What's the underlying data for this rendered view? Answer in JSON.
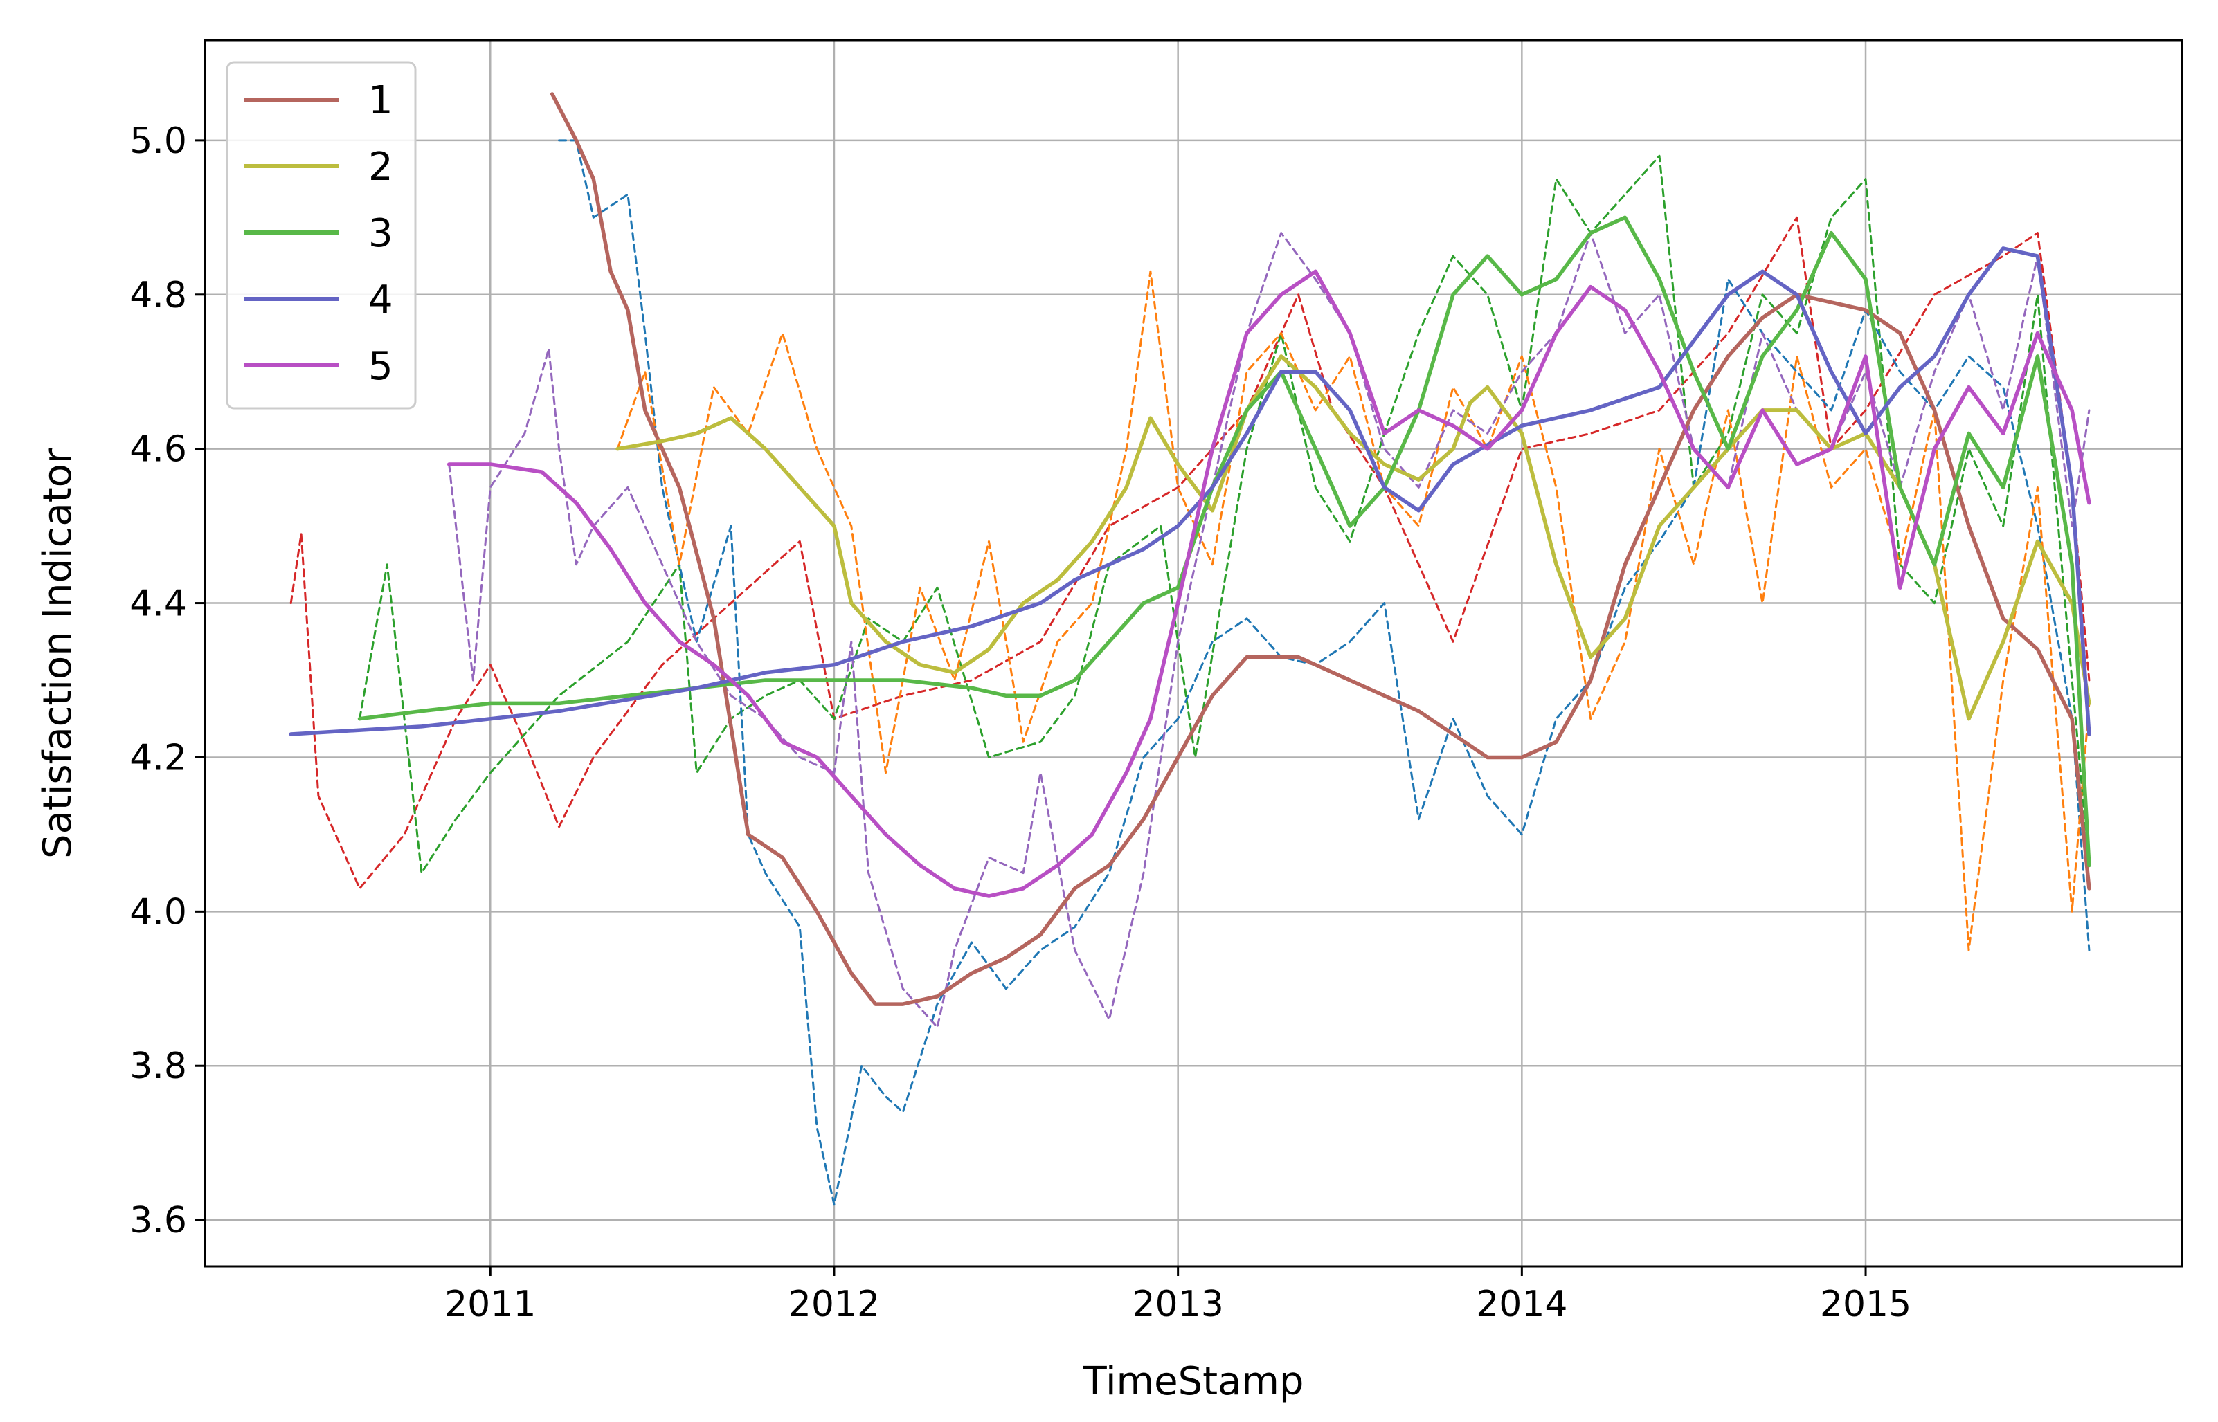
{
  "chart_data": {
    "type": "line",
    "title": "",
    "xlabel": "TimeStamp",
    "ylabel": "Satisfaction Indicator",
    "xlim": [
      2010.17,
      2015.92
    ],
    "ylim": [
      3.54,
      5.13
    ],
    "x_ticks": [
      2011,
      2012,
      2013,
      2014,
      2015
    ],
    "y_ticks": [
      3.6,
      3.8,
      4.0,
      4.2,
      4.4,
      4.6,
      4.8,
      5.0
    ],
    "x_tick_labels": [
      "2011",
      "2012",
      "2013",
      "2014",
      "2015"
    ],
    "y_tick_labels": [
      "3.6",
      "3.8",
      "4.0",
      "4.2",
      "4.4",
      "4.6",
      "4.8",
      "5.0"
    ],
    "grid": true,
    "legend_placement": "top-left",
    "series": [
      {
        "name": "1",
        "style": "solid",
        "color": "#b5655e",
        "x": [
          2011.18,
          2011.25,
          2011.3,
          2011.35,
          2011.4,
          2011.45,
          2011.55,
          2011.65,
          2011.75,
          2011.85,
          2011.95,
          2012.05,
          2012.12,
          2012.2,
          2012.3,
          2012.4,
          2012.5,
          2012.6,
          2012.7,
          2012.8,
          2012.9,
          2013.0,
          2013.1,
          2013.2,
          2013.35,
          2013.5,
          2013.6,
          2013.7,
          2013.8,
          2013.9,
          2014.0,
          2014.1,
          2014.2,
          2014.3,
          2014.4,
          2014.5,
          2014.6,
          2014.7,
          2014.8,
          2014.9,
          2015.0,
          2015.1,
          2015.2,
          2015.3,
          2015.4,
          2015.5,
          2015.6,
          2015.65
        ],
        "y": [
          5.06,
          5.0,
          4.95,
          4.83,
          4.78,
          4.65,
          4.55,
          4.38,
          4.1,
          4.07,
          4.0,
          3.92,
          3.88,
          3.88,
          3.89,
          3.92,
          3.94,
          3.97,
          4.03,
          4.06,
          4.12,
          4.2,
          4.28,
          4.33,
          4.33,
          4.3,
          4.28,
          4.26,
          4.23,
          4.2,
          4.2,
          4.22,
          4.3,
          4.45,
          4.55,
          4.65,
          4.72,
          4.77,
          4.8,
          4.79,
          4.78,
          4.75,
          4.65,
          4.5,
          4.38,
          4.34,
          4.25,
          4.03
        ]
      },
      {
        "name": "2",
        "style": "solid",
        "color": "#bcbd3e",
        "x": [
          2011.37,
          2011.5,
          2011.6,
          2011.7,
          2011.8,
          2011.9,
          2012.0,
          2012.05,
          2012.15,
          2012.25,
          2012.35,
          2012.45,
          2012.55,
          2012.65,
          2012.75,
          2012.85,
          2012.92,
          2013.0,
          2013.1,
          2013.2,
          2013.3,
          2013.4,
          2013.5,
          2013.6,
          2013.7,
          2013.8,
          2013.85,
          2013.9,
          2014.0,
          2014.1,
          2014.2,
          2014.3,
          2014.4,
          2014.5,
          2014.6,
          2014.7,
          2014.8,
          2014.9,
          2015.0,
          2015.1,
          2015.2,
          2015.3,
          2015.4,
          2015.5,
          2015.6,
          2015.65
        ],
        "y": [
          4.6,
          4.61,
          4.62,
          4.64,
          4.6,
          4.55,
          4.5,
          4.4,
          4.35,
          4.32,
          4.31,
          4.34,
          4.4,
          4.43,
          4.48,
          4.55,
          4.64,
          4.58,
          4.52,
          4.65,
          4.72,
          4.68,
          4.62,
          4.58,
          4.56,
          4.6,
          4.66,
          4.68,
          4.62,
          4.45,
          4.33,
          4.38,
          4.5,
          4.55,
          4.6,
          4.65,
          4.65,
          4.6,
          4.62,
          4.55,
          4.45,
          4.25,
          4.35,
          4.48,
          4.4,
          4.27
        ]
      },
      {
        "name": "3",
        "style": "solid",
        "color": "#58b848",
        "x": [
          2010.62,
          2010.8,
          2011.0,
          2011.2,
          2011.4,
          2011.6,
          2011.8,
          2012.0,
          2012.2,
          2012.4,
          2012.5,
          2012.6,
          2012.7,
          2012.8,
          2012.9,
          2013.0,
          2013.1,
          2013.2,
          2013.3,
          2013.4,
          2013.5,
          2013.6,
          2013.7,
          2013.8,
          2013.9,
          2014.0,
          2014.1,
          2014.2,
          2014.3,
          2014.4,
          2014.5,
          2014.6,
          2014.7,
          2014.8,
          2014.9,
          2015.0,
          2015.1,
          2015.2,
          2015.3,
          2015.4,
          2015.5,
          2015.6,
          2015.65
        ],
        "y": [
          4.25,
          4.26,
          4.27,
          4.27,
          4.28,
          4.29,
          4.3,
          4.3,
          4.3,
          4.29,
          4.28,
          4.28,
          4.3,
          4.35,
          4.4,
          4.42,
          4.55,
          4.65,
          4.7,
          4.6,
          4.5,
          4.55,
          4.65,
          4.8,
          4.85,
          4.8,
          4.82,
          4.88,
          4.9,
          4.82,
          4.7,
          4.6,
          4.72,
          4.78,
          4.88,
          4.82,
          4.55,
          4.45,
          4.62,
          4.55,
          4.72,
          4.45,
          4.06
        ]
      },
      {
        "name": "4",
        "style": "solid",
        "color": "#6464c4",
        "x": [
          2010.42,
          2010.8,
          2011.2,
          2011.6,
          2011.8,
          2012.0,
          2012.2,
          2012.4,
          2012.6,
          2012.7,
          2012.9,
          2013.0,
          2013.1,
          2013.2,
          2013.3,
          2013.4,
          2013.5,
          2013.6,
          2013.7,
          2013.8,
          2014.0,
          2014.2,
          2014.4,
          2014.6,
          2014.7,
          2014.8,
          2014.9,
          2015.0,
          2015.1,
          2015.2,
          2015.3,
          2015.4,
          2015.5,
          2015.6,
          2015.65
        ],
        "y": [
          4.23,
          4.24,
          4.26,
          4.29,
          4.31,
          4.32,
          4.35,
          4.37,
          4.4,
          4.43,
          4.47,
          4.5,
          4.55,
          4.62,
          4.7,
          4.7,
          4.65,
          4.55,
          4.52,
          4.58,
          4.63,
          4.65,
          4.68,
          4.8,
          4.83,
          4.8,
          4.7,
          4.62,
          4.68,
          4.72,
          4.8,
          4.86,
          4.85,
          4.55,
          4.23
        ]
      },
      {
        "name": "5",
        "style": "solid",
        "color": "#b84fc4",
        "x": [
          2010.88,
          2011.0,
          2011.15,
          2011.25,
          2011.35,
          2011.45,
          2011.55,
          2011.65,
          2011.75,
          2011.85,
          2011.95,
          2012.05,
          2012.15,
          2012.25,
          2012.35,
          2012.45,
          2012.55,
          2012.65,
          2012.75,
          2012.85,
          2012.92,
          2013.0,
          2013.1,
          2013.2,
          2013.3,
          2013.4,
          2013.5,
          2013.6,
          2013.7,
          2013.8,
          2013.9,
          2014.0,
          2014.1,
          2014.2,
          2014.3,
          2014.4,
          2014.5,
          2014.6,
          2014.7,
          2014.8,
          2014.9,
          2015.0,
          2015.1,
          2015.2,
          2015.3,
          2015.4,
          2015.5,
          2015.6,
          2015.65
        ],
        "y": [
          4.58,
          4.58,
          4.57,
          4.53,
          4.47,
          4.4,
          4.35,
          4.32,
          4.28,
          4.22,
          4.2,
          4.15,
          4.1,
          4.06,
          4.03,
          4.02,
          4.03,
          4.06,
          4.1,
          4.18,
          4.25,
          4.4,
          4.6,
          4.75,
          4.8,
          4.83,
          4.75,
          4.62,
          4.65,
          4.63,
          4.6,
          4.65,
          4.75,
          4.81,
          4.78,
          4.7,
          4.6,
          4.55,
          4.65,
          4.58,
          4.6,
          4.72,
          4.42,
          4.6,
          4.68,
          4.62,
          4.75,
          4.65,
          4.53
        ]
      },
      {
        "name": "",
        "style": "dashed",
        "color": "#d62728",
        "x": [
          2010.42,
          2010.45,
          2010.5,
          2010.62,
          2010.75,
          2010.9,
          2011.0,
          2011.1,
          2011.2,
          2011.3,
          2011.5,
          2011.7,
          2011.9,
          2012.0,
          2012.2,
          2012.4,
          2012.6,
          2012.8,
          2013.0,
          2013.2,
          2013.35,
          2013.45,
          2013.6,
          2013.8,
          2014.0,
          2014.2,
          2014.4,
          2014.6,
          2014.8,
          2014.9,
          2015.0,
          2015.2,
          2015.4,
          2015.5,
          2015.6,
          2015.65
        ],
        "y": [
          4.4,
          4.49,
          4.15,
          4.03,
          4.1,
          4.25,
          4.32,
          4.22,
          4.11,
          4.2,
          4.32,
          4.4,
          4.48,
          4.25,
          4.28,
          4.3,
          4.35,
          4.5,
          4.55,
          4.65,
          4.8,
          4.65,
          4.55,
          4.35,
          4.6,
          4.62,
          4.65,
          4.75,
          4.9,
          4.6,
          4.65,
          4.8,
          4.85,
          4.88,
          4.55,
          4.3
        ]
      },
      {
        "name": "",
        "style": "dashed",
        "color": "#2ca02c",
        "x": [
          2010.62,
          2010.7,
          2010.8,
          2010.9,
          2011.0,
          2011.2,
          2011.4,
          2011.55,
          2011.6,
          2011.7,
          2011.8,
          2011.9,
          2012.0,
          2012.1,
          2012.2,
          2012.3,
          2012.45,
          2012.6,
          2012.7,
          2012.8,
          2012.95,
          2013.05,
          2013.2,
          2013.3,
          2013.4,
          2013.5,
          2013.6,
          2013.7,
          2013.8,
          2013.9,
          2014.0,
          2014.1,
          2014.2,
          2014.3,
          2014.4,
          2014.5,
          2014.6,
          2014.7,
          2014.8,
          2014.9,
          2015.0,
          2015.1,
          2015.2,
          2015.3,
          2015.4,
          2015.5,
          2015.6,
          2015.65
        ],
        "y": [
          4.25,
          4.45,
          4.05,
          4.12,
          4.18,
          4.28,
          4.35,
          4.45,
          4.18,
          4.25,
          4.28,
          4.3,
          4.25,
          4.38,
          4.35,
          4.42,
          4.2,
          4.22,
          4.28,
          4.45,
          4.5,
          4.2,
          4.6,
          4.75,
          4.55,
          4.48,
          4.62,
          4.75,
          4.85,
          4.8,
          4.65,
          4.95,
          4.88,
          4.93,
          4.98,
          4.55,
          4.62,
          4.8,
          4.75,
          4.9,
          4.95,
          4.45,
          4.4,
          4.6,
          4.5,
          4.8,
          4.3,
          4.06
        ]
      },
      {
        "name": "",
        "style": "dashed",
        "color": "#1f77b4",
        "x": [
          2011.2,
          2011.25,
          2011.3,
          2011.4,
          2011.45,
          2011.5,
          2011.6,
          2011.7,
          2011.75,
          2011.8,
          2011.9,
          2011.95,
          2012.0,
          2012.08,
          2012.15,
          2012.2,
          2012.3,
          2012.4,
          2012.5,
          2012.6,
          2012.7,
          2012.8,
          2012.9,
          2013.0,
          2013.1,
          2013.2,
          2013.3,
          2013.4,
          2013.5,
          2013.6,
          2013.7,
          2013.8,
          2013.9,
          2014.0,
          2014.1,
          2014.2,
          2014.3,
          2014.4,
          2014.5,
          2014.6,
          2014.7,
          2014.8,
          2014.9,
          2015.0,
          2015.1,
          2015.2,
          2015.3,
          2015.4,
          2015.5,
          2015.6,
          2015.65
        ],
        "y": [
          5.0,
          5.0,
          4.9,
          4.93,
          4.75,
          4.55,
          4.35,
          4.5,
          4.1,
          4.05,
          3.98,
          3.72,
          3.62,
          3.8,
          3.76,
          3.74,
          3.88,
          3.96,
          3.9,
          3.95,
          3.98,
          4.05,
          4.2,
          4.25,
          4.35,
          4.38,
          4.33,
          4.32,
          4.35,
          4.4,
          4.12,
          4.25,
          4.15,
          4.1,
          4.25,
          4.3,
          4.42,
          4.48,
          4.55,
          4.82,
          4.75,
          4.7,
          4.65,
          4.78,
          4.7,
          4.65,
          4.72,
          4.68,
          4.5,
          4.25,
          3.95
        ]
      },
      {
        "name": "",
        "style": "dashed",
        "color": "#ff7f0e",
        "x": [
          2011.37,
          2011.45,
          2011.55,
          2011.65,
          2011.75,
          2011.85,
          2011.95,
          2012.05,
          2012.15,
          2012.25,
          2012.35,
          2012.45,
          2012.55,
          2012.65,
          2012.75,
          2012.85,
          2012.92,
          2013.0,
          2013.1,
          2013.2,
          2013.3,
          2013.4,
          2013.5,
          2013.6,
          2013.7,
          2013.8,
          2013.9,
          2014.0,
          2014.1,
          2014.2,
          2014.3,
          2014.4,
          2014.5,
          2014.6,
          2014.7,
          2014.8,
          2014.9,
          2015.0,
          2015.1,
          2015.2,
          2015.3,
          2015.4,
          2015.5,
          2015.6,
          2015.65
        ],
        "y": [
          4.6,
          4.7,
          4.45,
          4.68,
          4.62,
          4.75,
          4.6,
          4.5,
          4.18,
          4.42,
          4.3,
          4.48,
          4.22,
          4.35,
          4.4,
          4.6,
          4.83,
          4.55,
          4.45,
          4.7,
          4.75,
          4.65,
          4.72,
          4.55,
          4.5,
          4.68,
          4.6,
          4.72,
          4.55,
          4.25,
          4.35,
          4.6,
          4.45,
          4.65,
          4.4,
          4.72,
          4.55,
          4.6,
          4.45,
          4.65,
          3.95,
          4.3,
          4.55,
          4.0,
          4.27
        ]
      },
      {
        "name": "",
        "style": "dashed",
        "color": "#9467bd",
        "x": [
          2010.88,
          2010.95,
          2011.0,
          2011.1,
          2011.17,
          2011.2,
          2011.25,
          2011.3,
          2011.4,
          2011.5,
          2011.6,
          2011.7,
          2011.8,
          2011.9,
          2012.0,
          2012.05,
          2012.1,
          2012.2,
          2012.3,
          2012.35,
          2012.45,
          2012.55,
          2012.6,
          2012.7,
          2012.8,
          2012.9,
          2013.0,
          2013.1,
          2013.2,
          2013.3,
          2013.4,
          2013.5,
          2013.6,
          2013.7,
          2013.8,
          2013.9,
          2014.0,
          2014.1,
          2014.2,
          2014.3,
          2014.4,
          2014.5,
          2014.6,
          2014.7,
          2014.8,
          2014.9,
          2015.0,
          2015.1,
          2015.2,
          2015.3,
          2015.4,
          2015.5,
          2015.6,
          2015.65
        ],
        "y": [
          4.58,
          4.3,
          4.55,
          4.62,
          4.73,
          4.6,
          4.45,
          4.5,
          4.55,
          4.45,
          4.35,
          4.28,
          4.25,
          4.2,
          4.18,
          4.35,
          4.05,
          3.9,
          3.85,
          3.95,
          4.07,
          4.05,
          4.18,
          3.95,
          3.86,
          4.05,
          4.35,
          4.55,
          4.75,
          4.88,
          4.82,
          4.75,
          4.6,
          4.55,
          4.65,
          4.62,
          4.7,
          4.75,
          4.88,
          4.75,
          4.8,
          4.6,
          4.55,
          4.75,
          4.65,
          4.6,
          4.7,
          4.55,
          4.7,
          4.8,
          4.65,
          4.85,
          4.5,
          4.65
        ]
      }
    ]
  }
}
